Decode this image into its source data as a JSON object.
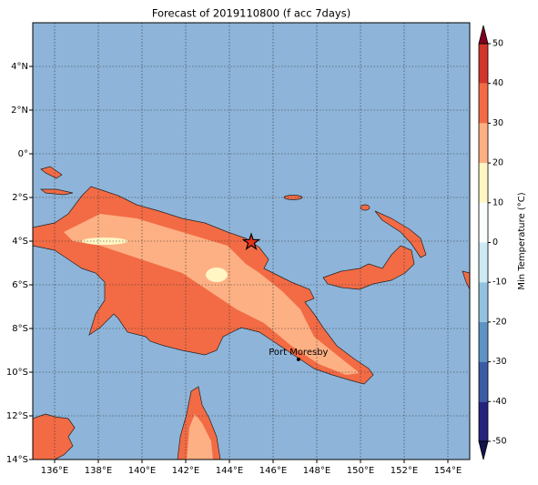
{
  "map": {
    "title": "Forecast of 2019110800 (f acc 7days)",
    "lonlim": [
      135,
      155
    ],
    "latlim": [
      -14,
      6
    ],
    "xticks": [
      {
        "value": 136,
        "label": "136°E"
      },
      {
        "value": 138,
        "label": "138°E"
      },
      {
        "value": 140,
        "label": "140°E"
      },
      {
        "value": 142,
        "label": "142°E"
      },
      {
        "value": 144,
        "label": "144°E"
      },
      {
        "value": 146,
        "label": "146°E"
      },
      {
        "value": 148,
        "label": "148°E"
      },
      {
        "value": 150,
        "label": "150°E"
      },
      {
        "value": 152,
        "label": "152°E"
      },
      {
        "value": 154,
        "label": "154°E"
      }
    ],
    "yticks": [
      {
        "value": 4,
        "label": "4°N"
      },
      {
        "value": 2,
        "label": "2°N"
      },
      {
        "value": 0,
        "label": "0°"
      },
      {
        "value": -2,
        "label": "2°S"
      },
      {
        "value": -4,
        "label": "4°S"
      },
      {
        "value": -6,
        "label": "6°S"
      },
      {
        "value": -8,
        "label": "8°S"
      },
      {
        "value": -10,
        "label": "10°S"
      },
      {
        "value": -12,
        "label": "12°S"
      },
      {
        "value": -14,
        "label": "14°S"
      }
    ],
    "grid": true,
    "marker": {
      "lon": 145.0,
      "lat": -4.05,
      "color": "#e8321e"
    },
    "places": [
      {
        "label": "Port Moresby",
        "lon": 147.16,
        "lat": -9.41
      }
    ],
    "colorbar": {
      "label": "Min Temperature (°C)",
      "ticks": [
        -50,
        -40,
        -30,
        -20,
        -10,
        0,
        10,
        20,
        30,
        40,
        50
      ],
      "colors": [
        "#23237e",
        "#3b5ba6",
        "#5f93c4",
        "#93c2de",
        "#cde9f3",
        "#fafdfd",
        "#fff6c4",
        "#fdb083",
        "#f26b45",
        "#d2352a"
      ],
      "extend_colors": [
        "#14144e",
        "#82001f"
      ]
    }
  }
}
